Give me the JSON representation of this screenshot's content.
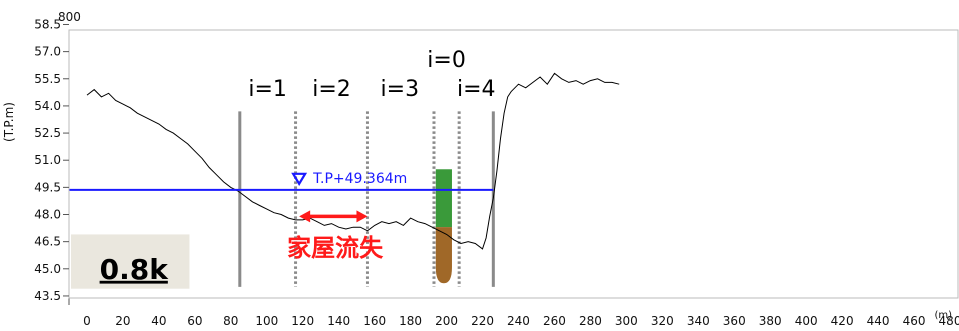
{
  "chart_data": {
    "type": "line",
    "title_top_left": "800",
    "ylabel": "(T.P.m)",
    "xlabel": "(m)",
    "xlim": [
      -10,
      485
    ],
    "ylim": [
      43.0,
      59.3
    ],
    "x_ticks": [
      0,
      20,
      40,
      60,
      80,
      100,
      120,
      140,
      160,
      180,
      200,
      220,
      240,
      260,
      280,
      300,
      320,
      340,
      360,
      380,
      400,
      420,
      440,
      460,
      480
    ],
    "x_tick_labels": [
      "0",
      "20",
      "40",
      "60",
      "80",
      "100",
      "120",
      "140",
      "160",
      "180",
      "200",
      "220",
      "240",
      "260",
      "280",
      "300",
      "320",
      "340",
      "360",
      "380",
      "400",
      "420",
      "440",
      "460",
      "480"
    ],
    "y_ticks": [
      43.5,
      45.0,
      46.5,
      48.0,
      49.5,
      51.0,
      52.5,
      54.0,
      55.5,
      57.0,
      58.5
    ],
    "y_tick_labels": [
      "43.5",
      "45.0",
      "46.5",
      "48.0",
      "49.5",
      "51.0",
      "52.5",
      "54.0",
      "55.5",
      "57.0",
      "58.5"
    ],
    "grid": false,
    "series": [
      {
        "x": [
          0,
          4,
          8,
          12,
          16,
          20,
          24,
          28,
          32,
          36,
          40,
          44,
          48,
          52,
          56,
          60,
          64,
          68,
          72,
          76,
          80,
          84,
          88,
          92,
          96,
          100,
          104,
          108,
          112,
          116,
          120,
          124,
          128,
          132,
          136,
          140,
          144,
          148,
          152,
          156,
          160,
          164,
          168,
          172,
          176,
          180,
          184,
          188,
          192,
          196,
          200,
          204,
          208,
          212,
          216,
          220,
          222,
          224,
          226,
          228,
          230,
          232,
          234,
          236,
          238,
          240,
          244,
          248,
          252,
          256,
          260,
          264,
          268,
          272,
          276,
          280,
          284,
          288,
          292,
          296
        ],
        "y": [
          54.6,
          54.9,
          54.5,
          54.7,
          54.3,
          54.1,
          53.9,
          53.6,
          53.4,
          53.2,
          53.0,
          52.7,
          52.5,
          52.2,
          51.9,
          51.5,
          51.1,
          50.6,
          50.2,
          49.8,
          49.5,
          49.3,
          49.0,
          48.7,
          48.5,
          48.3,
          48.1,
          48.0,
          47.8,
          47.7,
          47.7,
          47.8,
          47.6,
          47.4,
          47.5,
          47.3,
          47.2,
          47.3,
          47.3,
          47.1,
          47.4,
          47.6,
          47.5,
          47.6,
          47.4,
          47.8,
          47.6,
          47.5,
          47.3,
          47.1,
          46.9,
          46.6,
          46.4,
          46.5,
          46.4,
          46.1,
          46.7,
          47.9,
          48.9,
          50.4,
          52.2,
          53.6,
          54.5,
          54.8,
          55.0,
          55.2,
          55.0,
          55.3,
          55.6,
          55.2,
          55.8,
          55.5,
          55.3,
          55.4,
          55.2,
          55.4,
          55.5,
          55.3,
          55.3,
          55.2
        ]
      }
    ],
    "water_level": {
      "y": 49.364,
      "x_start": -10,
      "x_end": 226,
      "label": "T.P+49.364m",
      "color": "#1a1aff"
    },
    "divider_lines": [
      {
        "x": 85,
        "style": "solid",
        "y_bottom": 44.0
      },
      {
        "x": 116,
        "style": "dotted",
        "y_bottom": 44.0
      },
      {
        "x": 156,
        "style": "dotted",
        "y_bottom": 44.0
      },
      {
        "x": 193,
        "style": "dotted",
        "y_bottom": 44.0
      },
      {
        "x": 207,
        "style": "dotted",
        "y_bottom": 44.0
      },
      {
        "x": 226,
        "style": "solid",
        "y_bottom": 44.0
      }
    ],
    "line_top": 53.7,
    "zone_labels": [
      {
        "text": "i=1",
        "x": 100.5,
        "y": 55.0
      },
      {
        "text": "i=2",
        "x": 136,
        "y": 55.0
      },
      {
        "text": "i=3",
        "x": 174,
        "y": 55.0
      },
      {
        "text": "i=0",
        "x": 200,
        "y": 56.6
      },
      {
        "text": "i=4",
        "x": 216.5,
        "y": 55.0
      }
    ],
    "green_bar": {
      "x0": 194,
      "x1": 203,
      "y0": 47.3,
      "y1": 50.5,
      "color": "#3a9a3a"
    },
    "brown_bar": {
      "x0": 194,
      "x1": 203,
      "y0": 44.2,
      "y1": 47.3,
      "color": "#a06828"
    },
    "red_arrow": {
      "x0": 118,
      "x1": 156,
      "y": 47.9,
      "color": "#ff1a1a"
    },
    "annotation": {
      "text": "家屋流失",
      "x": 138,
      "y": 46.2,
      "color": "#ff1a1a"
    },
    "section_label": {
      "text": "0.8k",
      "x": 26,
      "y": 45.0,
      "box_color": "#eae7de"
    },
    "line_color": "#000000",
    "colors": {
      "divider": "#8a8a8a",
      "axis": "#555555"
    }
  }
}
